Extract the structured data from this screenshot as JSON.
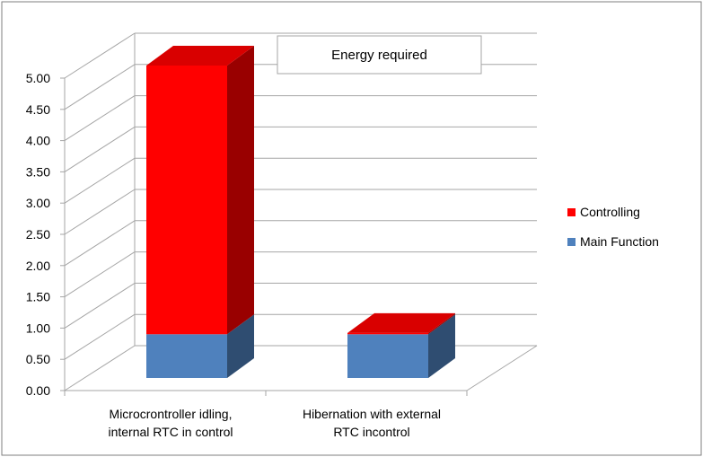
{
  "chart_data": {
    "type": "bar",
    "stacked": true,
    "three_d": true,
    "title": "Energy required",
    "categories": [
      [
        "Microcrontroller idling,",
        "internal RTC in control"
      ],
      [
        "Hibernation with external",
        "RTC incontrol"
      ]
    ],
    "series": [
      {
        "name": "Main Function",
        "values": [
          0.7,
          0.7
        ],
        "color": "#4f81bd"
      },
      {
        "name": "Controlling",
        "values": [
          4.3,
          0.02
        ],
        "color": "#ff0000"
      }
    ],
    "ylim": [
      0,
      5
    ],
    "y_ticks": [
      "0.00",
      "0.50",
      "1.00",
      "1.50",
      "2.00",
      "2.50",
      "3.00",
      "3.50",
      "4.00",
      "4.50",
      "5.00"
    ],
    "grid": true,
    "legend_position": "right"
  }
}
